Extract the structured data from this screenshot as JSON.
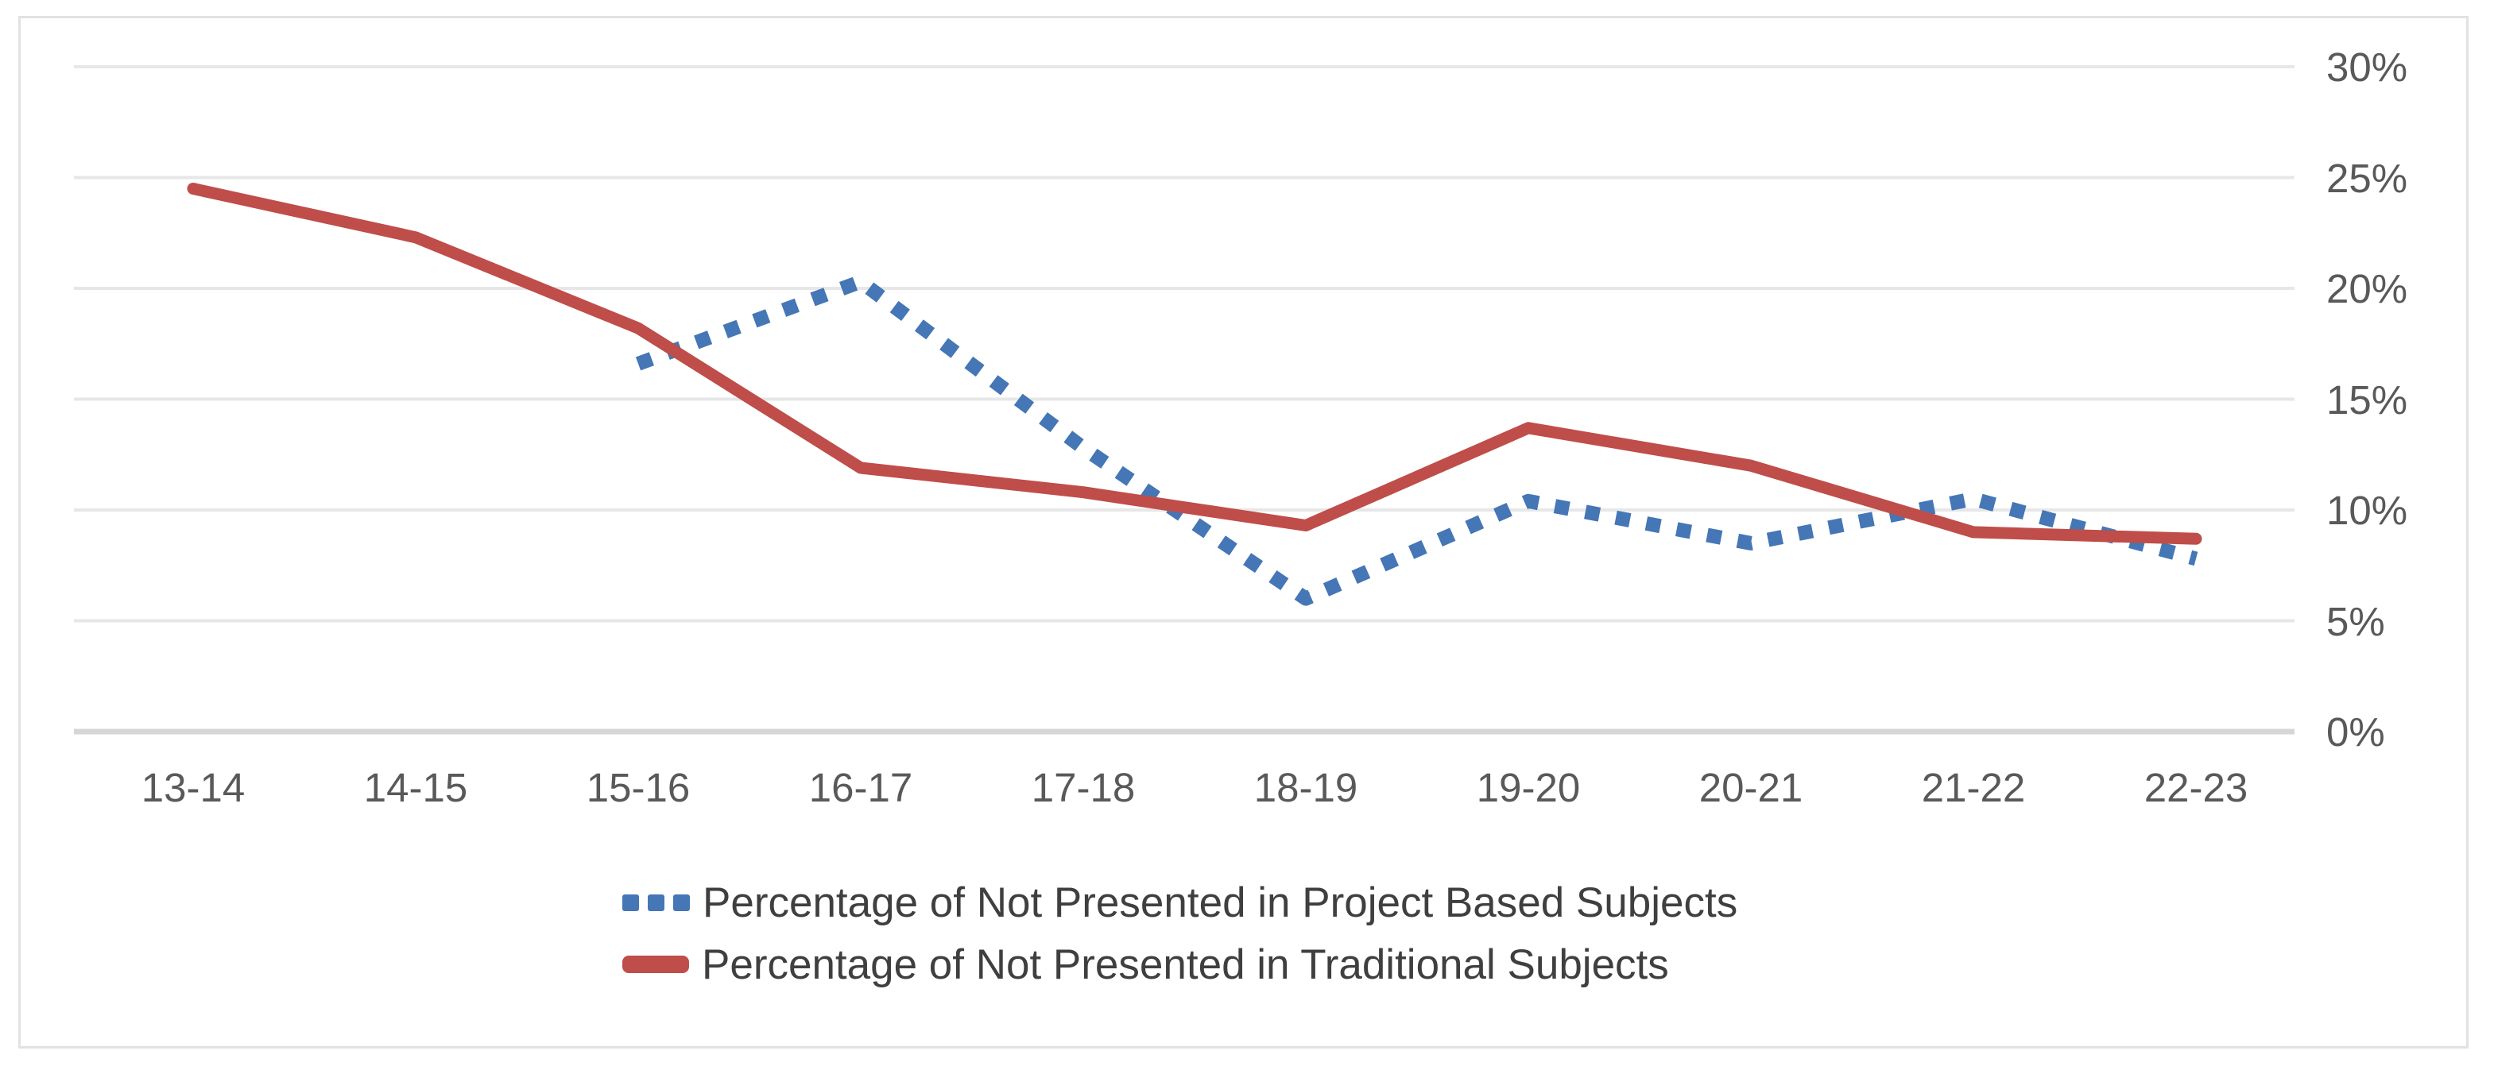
{
  "chart_data": {
    "type": "line",
    "title": "",
    "categories": [
      "13-14",
      "14-15",
      "15-16",
      "16-17",
      "17-18",
      "18-19",
      "19-20",
      "20-21",
      "21-22",
      "22-23"
    ],
    "series": [
      {
        "name": "Percentage of Not Presented in Project Based Subjects",
        "color": "#4576b5",
        "style": "dotted",
        "values": [
          null,
          null,
          16.6,
          20.3,
          12.8,
          6.0,
          10.4,
          8.5,
          10.5,
          7.8
        ]
      },
      {
        "name": "Percentage of Not Presented in Traditional Subjects",
        "color": "#bf4d4a",
        "style": "solid",
        "values": [
          24.5,
          22.3,
          18.2,
          11.9,
          10.8,
          9.3,
          13.7,
          12.0,
          9.0,
          8.7
        ]
      }
    ],
    "xlabel": "",
    "ylabel": "",
    "y_ticks": [
      {
        "label": "30%",
        "value": 30
      },
      {
        "label": "25%",
        "value": 25
      },
      {
        "label": "20%",
        "value": 20
      },
      {
        "label": "15%",
        "value": 15
      },
      {
        "label": "10%",
        "value": 10
      },
      {
        "label": "5%",
        "value": 5
      },
      {
        "label": "0%",
        "value": 0
      }
    ],
    "ylim": [
      0,
      30
    ],
    "grid": true,
    "y_axis_side": "right",
    "legend_position": "bottom",
    "colors": {
      "gridline": "#e7e7e7",
      "axis_line": "#d6d6d6",
      "tick_text": "#595959",
      "legend_text": "#3f3f3f",
      "frame_border": "#e2e2e2",
      "background": "#ffffff"
    }
  }
}
